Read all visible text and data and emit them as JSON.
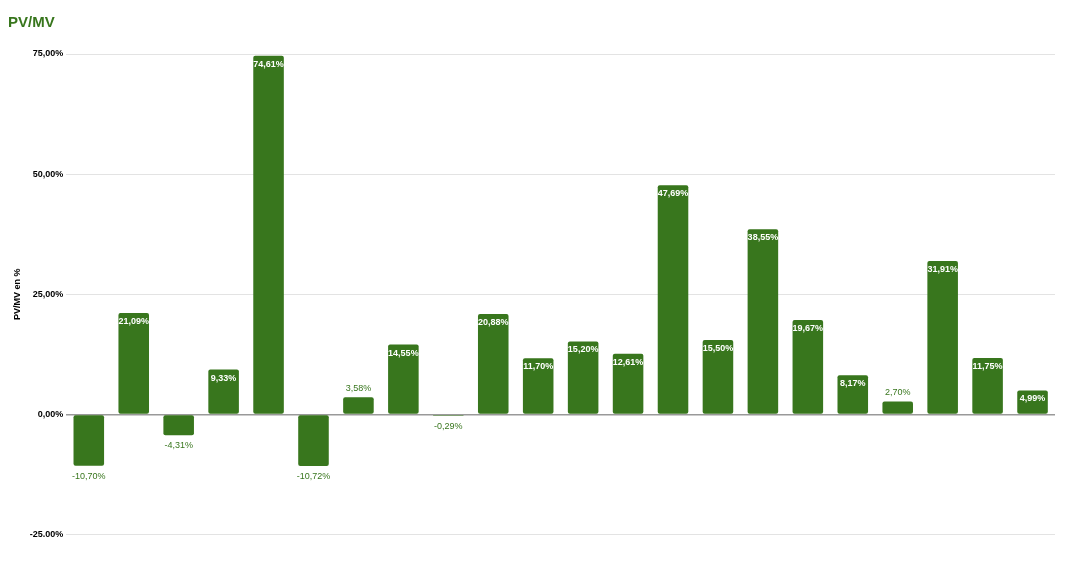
{
  "chart_data": {
    "type": "bar",
    "title": "PV/MV",
    "ylabel": "PV/MV en %",
    "categories": [
      null,
      null,
      null,
      null,
      null,
      null,
      null,
      null,
      null,
      null,
      null,
      null,
      null,
      null,
      null,
      null,
      null,
      null,
      null,
      null,
      null,
      null
    ],
    "values": [
      -10.7,
      21.09,
      -4.31,
      9.33,
      74.61,
      -10.72,
      3.58,
      14.55,
      -0.29,
      20.88,
      11.7,
      15.2,
      12.61,
      47.69,
      15.5,
      38.55,
      19.67,
      8.17,
      2.7,
      31.91,
      11.75,
      4.99
    ],
    "value_labels": [
      "-10,70%",
      "21,09%",
      "-4,31%",
      "9,33%",
      "74,61%",
      "-10,72%",
      "3,58%",
      "14,55%",
      "-0,29%",
      "20,88%",
      "11,70%",
      "15,20%",
      "12,61%",
      "47,69%",
      "15,50%",
      "38,55%",
      "19,67%",
      "8,17%",
      "2,70%",
      "31,91%",
      "11,75%",
      "4,99%"
    ],
    "color": "#38761d",
    "ylim": [
      -25,
      75
    ],
    "yticks": [
      {
        "value": -25,
        "label": "-25.00%"
      },
      {
        "value": 0,
        "label": "0,00%"
      },
      {
        "value": 25,
        "label": "25,00%"
      },
      {
        "value": 50,
        "label": "50,00%"
      },
      {
        "value": 75,
        "label": "75,00%"
      }
    ],
    "grid": "y",
    "legend": false
  }
}
